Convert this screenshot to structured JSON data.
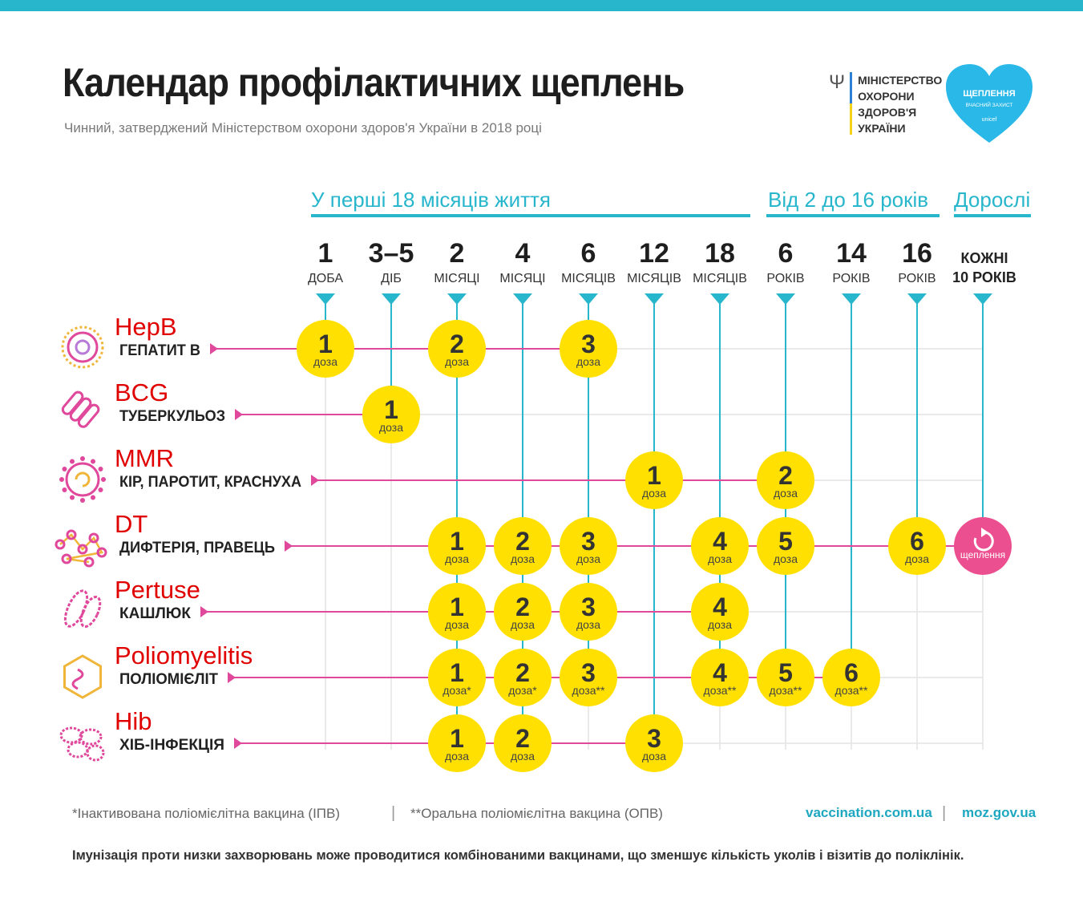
{
  "header": {
    "title": "Календар профілактичних щеплень",
    "subtitle": "Чинний, затверджений Міністерством охорони здоров'я України в 2018 році",
    "ministry": {
      "lines": [
        "МІНІСТЕРСТВО",
        "ОХОРОНИ",
        "ЗДОРОВ'Я",
        "УКРАЇНИ"
      ],
      "colors": {
        "blue": "#2b7fd4",
        "yellow": "#f5d21a"
      }
    },
    "badge": {
      "lines": [
        "ЩЕПЛЕННЯ",
        "ВЧАСНИЙ ЗАХИСТ",
        "unicef"
      ],
      "color": "#29b8e8"
    }
  },
  "age_groups": [
    {
      "label": "У перші 18 місяців життя"
    },
    {
      "label": "Від 2 до 16 років"
    },
    {
      "label": "Дорослі"
    }
  ],
  "ages": [
    {
      "num": "1",
      "unit": "ДОБА"
    },
    {
      "num": "3–5",
      "unit": "ДІБ"
    },
    {
      "num": "2",
      "unit": "МІСЯЦІ"
    },
    {
      "num": "4",
      "unit": "МІСЯЦІ"
    },
    {
      "num": "6",
      "unit": "МІСЯЦІВ"
    },
    {
      "num": "12",
      "unit": "МІСЯЦІВ"
    },
    {
      "num": "18",
      "unit": "МІСЯЦІВ"
    },
    {
      "num": "6",
      "unit": "РОКІВ"
    },
    {
      "num": "14",
      "unit": "РОКІВ"
    },
    {
      "num": "16",
      "unit": "РОКІВ"
    },
    {
      "num": "",
      "unit": "",
      "lines": [
        "КОЖНІ",
        "10 РОКІВ"
      ]
    }
  ],
  "vaccines": [
    {
      "code": "HepB",
      "name": "ГЕПАТИТ В",
      "icon": "virus-hepatitis-icon",
      "doses": [
        {
          "age": 0,
          "num": "1",
          "label": "доза"
        },
        {
          "age": 2,
          "num": "2",
          "label": "доза"
        },
        {
          "age": 4,
          "num": "3",
          "label": "доза"
        }
      ]
    },
    {
      "code": "BCG",
      "name": "ТУБЕРКУЛЬОЗ",
      "icon": "bacteria-tuberculosis-icon",
      "doses": [
        {
          "age": 1,
          "num": "1",
          "label": "доза"
        }
      ]
    },
    {
      "code": "MMR",
      "name": "КІР, ПАРОТИТ, КРАСНУХА",
      "icon": "virus-measles-icon",
      "doses": [
        {
          "age": 5,
          "num": "1",
          "label": "доза"
        },
        {
          "age": 7,
          "num": "2",
          "label": "доза"
        }
      ]
    },
    {
      "code": "DT",
      "name": "ДИФТЕРІЯ, ПРАВЕЦЬ",
      "icon": "molecule-diphtheria-icon",
      "doses": [
        {
          "age": 2,
          "num": "1",
          "label": "доза"
        },
        {
          "age": 3,
          "num": "2",
          "label": "доза"
        },
        {
          "age": 4,
          "num": "3",
          "label": "доза"
        },
        {
          "age": 6,
          "num": "4",
          "label": "доза"
        },
        {
          "age": 7,
          "num": "5",
          "label": "доза"
        },
        {
          "age": 9,
          "num": "6",
          "label": "доза"
        },
        {
          "age": 10,
          "num": "",
          "label": "щеплення",
          "booster": true
        }
      ]
    },
    {
      "code": "Pertuse",
      "name": "КАШЛЮК",
      "icon": "bacteria-pertussis-icon",
      "doses": [
        {
          "age": 2,
          "num": "1",
          "label": "доза"
        },
        {
          "age": 3,
          "num": "2",
          "label": "доза"
        },
        {
          "age": 4,
          "num": "3",
          "label": "доза"
        },
        {
          "age": 6,
          "num": "4",
          "label": "доза"
        }
      ]
    },
    {
      "code": "Poliomyelitis",
      "name": "ПОЛІОМІЄЛІТ",
      "icon": "virus-polio-icon",
      "doses": [
        {
          "age": 2,
          "num": "1",
          "label": "доза*"
        },
        {
          "age": 3,
          "num": "2",
          "label": "доза*"
        },
        {
          "age": 4,
          "num": "3",
          "label": "доза**"
        },
        {
          "age": 6,
          "num": "4",
          "label": "доза**"
        },
        {
          "age": 7,
          "num": "5",
          "label": "доза**"
        },
        {
          "age": 8,
          "num": "6",
          "label": "доза**"
        }
      ]
    },
    {
      "code": "Hib",
      "name": "ХІБ-ІНФЕКЦІЯ",
      "icon": "bacteria-hib-icon",
      "doses": [
        {
          "age": 2,
          "num": "1",
          "label": "доза"
        },
        {
          "age": 3,
          "num": "2",
          "label": "доза"
        },
        {
          "age": 5,
          "num": "3",
          "label": "доза"
        }
      ]
    }
  ],
  "colors": {
    "accent": "#27b6cc",
    "magenta": "#e0489c",
    "dose": "#ffe000",
    "booster": "#ec4f8f",
    "code_label": "#e00000",
    "grid": "#e4e4e4"
  },
  "footer": {
    "note1": "*Інактивована поліомієлітна вакцина (ІПВ)",
    "separator": "|",
    "note2": "**Оральна поліомієлітна вакцина (ОПВ)",
    "link1": "vaccination.com.ua",
    "link2": "moz.gov.ua",
    "bottom": "Імунізація проти низки захворювань може проводитися комбінованими вакцинами, що зменшує кількість уколів і візитів до поліклінік."
  }
}
